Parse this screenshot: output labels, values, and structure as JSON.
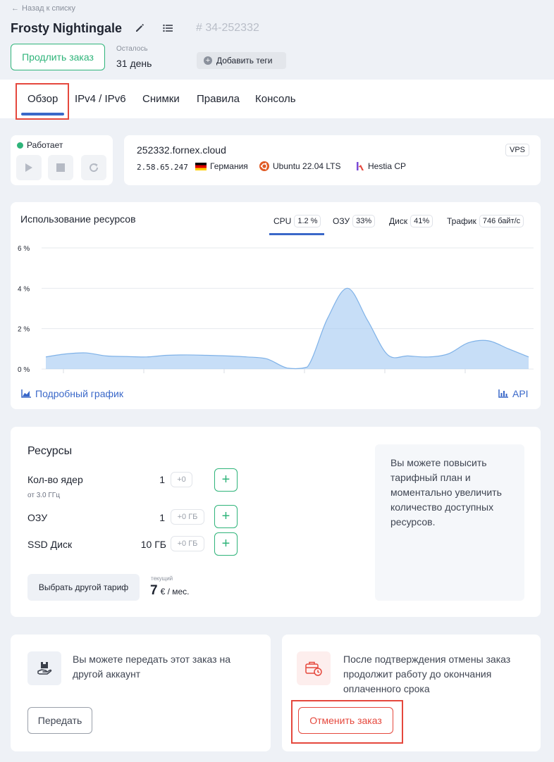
{
  "nav": {
    "back_label": "Назад к списку"
  },
  "header": {
    "title": "Frosty Nightingale",
    "order_id": "# 34-252332",
    "extend_label": "Продлить заказ",
    "remaining_caption": "Осталось",
    "remaining_value": "31 день",
    "add_tags_label": "Добавить теги"
  },
  "tabs": [
    {
      "label": "Обзор",
      "active": true
    },
    {
      "label": "IPv4 / IPv6"
    },
    {
      "label": "Снимки"
    },
    {
      "label": "Правила"
    },
    {
      "label": "Консоль"
    }
  ],
  "status": {
    "label": "Работает",
    "color": "#2fb47a"
  },
  "server": {
    "hostname": "252332.fornex.cloud",
    "badge": "VPS",
    "ip": "2.58.65.247",
    "country": "Германия",
    "os": "Ubuntu 22.04 LTS",
    "panel": "Hestia CP"
  },
  "usage": {
    "title": "Использование ресурсов",
    "tabs": [
      {
        "label": "CPU",
        "value": "1.2 %",
        "active": true
      },
      {
        "label": "ОЗУ",
        "value": "33%"
      },
      {
        "label": "Диск",
        "value": "41%"
      },
      {
        "label": "Трафик",
        "value": "746 байт/с"
      }
    ],
    "detailed_link": "Подробный график",
    "api_link": "API"
  },
  "chart_data": {
    "type": "area",
    "y_ticks": [
      "6 %",
      "4 %",
      "2 %",
      "0 %"
    ],
    "ylim": [
      0,
      6
    ],
    "x": [
      0,
      1,
      2,
      3,
      4,
      5,
      6,
      7,
      8,
      9,
      10,
      11,
      12,
      13,
      14,
      15,
      16,
      17,
      18,
      19,
      20,
      21,
      22,
      23,
      24
    ],
    "values": [
      0.6,
      0.75,
      0.8,
      0.65,
      0.62,
      0.6,
      0.68,
      0.7,
      0.68,
      0.65,
      0.6,
      0.5,
      0.05,
      0.1,
      2.5,
      4.0,
      2.4,
      0.7,
      0.65,
      0.6,
      0.75,
      1.3,
      1.4,
      1.0,
      0.6
    ],
    "grid": true,
    "color": "#a9cdf2"
  },
  "resources": {
    "title": "Ресурсы",
    "items": [
      {
        "label": "Кол-во ядер",
        "sub": "от 3.0 ГГц",
        "value": "1",
        "delta": "+0"
      },
      {
        "label": "ОЗУ",
        "sub": "",
        "value": "1",
        "delta": "+0 ГБ"
      },
      {
        "label": "SSD Диск",
        "sub": "",
        "value": "10 ГБ",
        "delta": "+0 ГБ"
      }
    ],
    "choose_plan_label": "Выбрать другой тариф",
    "price_caption": "текущий",
    "price_value": "7",
    "price_unit": "€ / мес.",
    "upgrade_text": "Вы можете повысить тарифный план и моментально увеличить количество доступных ресурсов."
  },
  "transfer": {
    "text": "Вы можете передать этот заказ на другой аккаунт",
    "button": "Передать"
  },
  "cancel": {
    "text": "После подтверждения отмены заказ продолжит работу до окончания оплаченного срока",
    "button": "Отменить заказ",
    "color": "#e5483d"
  }
}
